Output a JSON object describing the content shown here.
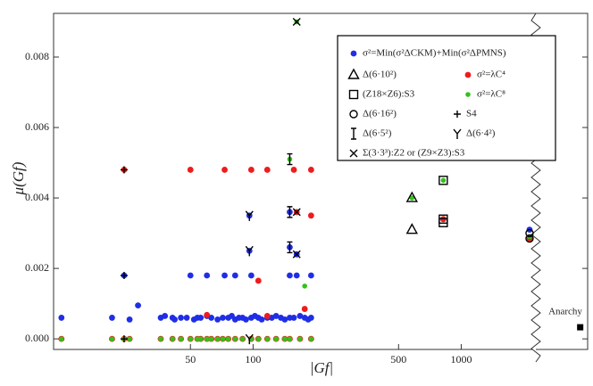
{
  "chart_data": {
    "type": "scatter",
    "x_label": "|Gf|",
    "y_label": "μ(Gf)",
    "log_x": true,
    "xlim": [
      11,
      4050
    ],
    "ylim": [
      -0.0003,
      0.00924
    ],
    "xticks": [
      50,
      100,
      500,
      1000
    ],
    "yticks": [
      {
        "value": 0,
        "label": "0.000"
      },
      {
        "value": 0.002,
        "label": "0.002"
      },
      {
        "value": 0.004,
        "label": "0.004"
      },
      {
        "value": 0.006,
        "label": "0.006"
      },
      {
        "value": 0.008,
        "label": "0.008"
      }
    ],
    "series": [
      {
        "name": "σ²=Min(σ²ΔCKM)+Min(σ²ΔPMNS)",
        "color": "#1f2ee6",
        "marker": "dot",
        "x": [
          12,
          21,
          25.5,
          36,
          37.7,
          41,
          42,
          45,
          48,
          52,
          54,
          56,
          60,
          63,
          67.5,
          71.5,
          76,
          79,
          82,
          85.5,
          89,
          92.4,
          98,
          102,
          106,
          110,
          117,
          123,
          129,
          136,
          142,
          150,
          157,
          168,
          177,
          184,
          190,
          24,
          50,
          60,
          73,
          82,
          98,
          150,
          162,
          190,
          96,
          150,
          162,
          96,
          150,
          28,
          2130,
          820
        ],
        "values": [
          0.0006,
          0.0006,
          0.00055,
          0.0006,
          0.00065,
          0.0006,
          0.00055,
          0.0006,
          0.0006,
          0.00055,
          0.0006,
          0.0006,
          0.00065,
          0.0006,
          0.00055,
          0.0006,
          0.0006,
          0.00065,
          0.00055,
          0.0006,
          0.0006,
          0.00055,
          0.0006,
          0.00065,
          0.0006,
          0.00055,
          0.0006,
          0.0006,
          0.00065,
          0.0006,
          0.00055,
          0.0006,
          0.0006,
          0.00065,
          0.0006,
          0.00055,
          0.0006,
          0.0018,
          0.0018,
          0.0018,
          0.0018,
          0.0018,
          0.0018,
          0.0018,
          0.0018,
          0.0018,
          0.0025,
          0.0026,
          0.0024,
          0.0035,
          0.0036,
          0.00095,
          0.0031,
          0.0034
        ]
      },
      {
        "name": "σ²=λC⁴",
        "color": "#ee1c1c",
        "marker": "dot",
        "x": [
          24,
          50,
          73,
          98,
          117,
          157,
          190,
          190,
          106,
          60,
          117,
          177,
          162,
          820,
          2130,
          12,
          21,
          24,
          25.5,
          36,
          41,
          45,
          50,
          54,
          56,
          60,
          63,
          67.5,
          71.5,
          76,
          82,
          89,
          98,
          106,
          117,
          129,
          142,
          150,
          168,
          190
        ],
        "values": [
          0.0048,
          0.0048,
          0.0048,
          0.0048,
          0.0048,
          0.0048,
          0.0048,
          0.0035,
          0.00165,
          0.00068,
          0.00065,
          0.00085,
          0.0036,
          0.0034,
          0.00285,
          0,
          0,
          0,
          0,
          0,
          0,
          0,
          0,
          0,
          0,
          0,
          0,
          0,
          0,
          0,
          0,
          0,
          0,
          0,
          0,
          0,
          0,
          0,
          0,
          0
        ]
      },
      {
        "name": "σ²=λC⁸",
        "color": "#33c21a",
        "marker": "dot-small",
        "x": [
          150,
          162,
          580,
          820,
          177,
          2130,
          12,
          21,
          24,
          25.5,
          36,
          41,
          45,
          50,
          54,
          56,
          60,
          63,
          67.5,
          71.5,
          76,
          82,
          89,
          98,
          106,
          117,
          129,
          142,
          150,
          168,
          190
        ],
        "values": [
          0.0051,
          0.009,
          0.004,
          0.0045,
          0.0015,
          0.0029,
          0,
          0,
          0,
          0,
          0,
          0,
          0,
          0,
          0,
          0,
          0,
          0,
          0,
          0,
          0,
          0,
          0,
          0,
          0,
          0,
          0,
          0,
          0,
          0,
          0
        ]
      },
      {
        "name": "Δ(6·10²)",
        "color": "#000000",
        "marker": "triangle",
        "x": [
          580,
          580
        ],
        "values": [
          0.0031,
          0.004
        ]
      },
      {
        "name": "(Z18×Z6):S3",
        "color": "#000000",
        "marker": "square",
        "x": [
          820,
          820,
          820
        ],
        "values": [
          0.0045,
          0.0034,
          0.0033
        ]
      },
      {
        "name": "Δ(6·16²)",
        "color": "#000000",
        "marker": "ring",
        "x": [
          2130,
          2130
        ],
        "values": [
          0.00285,
          0.003
        ]
      },
      {
        "name": "Δ(6·5²)",
        "color": "#000000",
        "marker": "I",
        "x": [
          150,
          150,
          150
        ],
        "values": [
          0.0051,
          0.0036,
          0.0026
        ]
      },
      {
        "name": "Δ(6·4²)",
        "color": "#000000",
        "marker": "Y",
        "x": [
          96,
          96,
          96
        ],
        "values": [
          0.0035,
          0.0025,
          0
        ]
      },
      {
        "name": "S4",
        "color": "#000000",
        "marker": "plus",
        "x": [
          24,
          24,
          24
        ],
        "values": [
          0.0048,
          0.0018,
          0
        ]
      },
      {
        "name": "Σ(3·3³):Z2 or (Z9×Z3):S3",
        "color": "#000000",
        "marker": "cross",
        "x": [
          162,
          162,
          162
        ],
        "values": [
          0.009,
          0.0036,
          0.0024
        ]
      }
    ],
    "anarchy": {
      "label": "Anarchy",
      "x": 3730,
      "value": 0.00033,
      "color": "#000000"
    }
  }
}
